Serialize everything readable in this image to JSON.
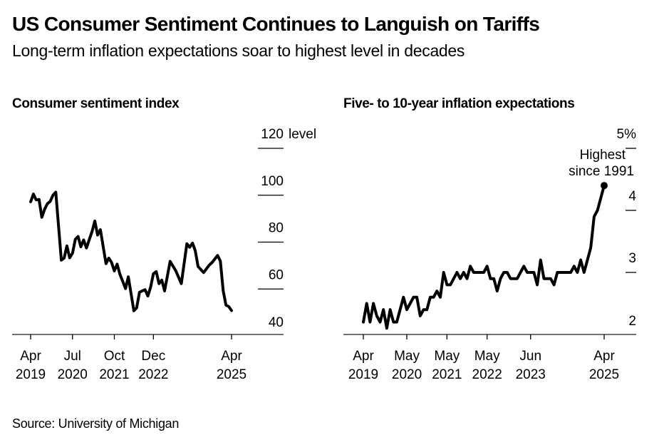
{
  "header": {
    "title": "US Consumer Sentiment Continues to Languish on Tariffs",
    "subtitle": "Long-term inflation expectations soar to highest level in decades"
  },
  "footer": {
    "source": "Source: University of Michigan"
  },
  "colors": {
    "line": "#000000",
    "grid": "#000000",
    "axis": "#555555",
    "text": "#000000"
  },
  "chart_data": [
    {
      "type": "line",
      "title": "Consumer sentiment index",
      "xlabel": "",
      "ylabel": "level",
      "ylim": [
        40,
        120
      ],
      "yticks": [
        {
          "value": 120,
          "label": "120 level"
        },
        {
          "value": 100,
          "label": "100"
        },
        {
          "value": 80,
          "label": "80"
        },
        {
          "value": 60,
          "label": "60"
        },
        {
          "value": 40,
          "label": "40"
        }
      ],
      "xlim": [
        0,
        72
      ],
      "xticks": [
        {
          "x": 0,
          "line1": "Apr",
          "line2": "2019"
        },
        {
          "x": 15,
          "line1": "Jul",
          "line2": "2020"
        },
        {
          "x": 30,
          "line1": "Oct",
          "line2": "2021"
        },
        {
          "x": 44,
          "line1": "Dec",
          "line2": "2022"
        },
        {
          "x": 72,
          "line1": "Apr",
          "line2": "2025"
        }
      ],
      "x_unit": "months since Apr 2019",
      "grid": true,
      "series": [
        {
          "name": "Consumer sentiment index",
          "x": [
            0,
            1,
            2,
            3,
            4,
            5,
            6,
            7,
            8,
            9,
            11,
            12,
            13,
            14,
            15,
            16,
            17,
            18,
            19,
            20,
            22,
            23,
            24,
            25,
            27,
            28,
            29,
            30,
            31,
            32,
            34,
            35,
            37,
            38,
            39,
            40,
            41,
            42,
            43,
            44,
            45,
            46,
            47,
            48,
            50,
            52,
            54,
            56,
            57,
            58,
            59,
            60,
            62,
            64,
            65,
            67,
            68,
            69,
            70,
            71,
            72
          ],
          "values": [
            97.2,
            100.5,
            98,
            98.2,
            90.6,
            94,
            96.4,
            97.3,
            100,
            101.3,
            72.3,
            73.2,
            78.4,
            73.3,
            75.3,
            81.2,
            82.4,
            78,
            80.9,
            77.5,
            84.5,
            89,
            83,
            85.3,
            70.8,
            73.2,
            71.3,
            67.7,
            70.6,
            66.3,
            60.2,
            65.2,
            50.7,
            52,
            58.6,
            59.2,
            59.7,
            57,
            60.8,
            66.5,
            67.4,
            62.3,
            63.8,
            59.2,
            71.8,
            67.8,
            62.3,
            79.3,
            77.8,
            79.6,
            76.3,
            69.6,
            67,
            70.2,
            71.3,
            74.3,
            71.9,
            59.2,
            53.1,
            52.5,
            50.8
          ]
        }
      ]
    },
    {
      "type": "line",
      "title": "Five- to 10-year inflation expectations",
      "xlabel": "",
      "ylabel": "%",
      "ylim": [
        2,
        5
      ],
      "yticks": [
        {
          "value": 5,
          "label": "5%"
        },
        {
          "value": 4,
          "label": "4"
        },
        {
          "value": 3,
          "label": "3"
        },
        {
          "value": 2,
          "label": "2"
        }
      ],
      "xlim": [
        0,
        72
      ],
      "xticks": [
        {
          "x": 0,
          "line1": "Apr",
          "line2": "2019"
        },
        {
          "x": 13,
          "line1": "May",
          "line2": "2020"
        },
        {
          "x": 25,
          "line1": "May",
          "line2": "2021"
        },
        {
          "x": 37,
          "line1": "May",
          "line2": "2022"
        },
        {
          "x": 50,
          "line1": "Jun",
          "line2": "2023"
        },
        {
          "x": 72,
          "line1": "Apr",
          "line2": "2025"
        }
      ],
      "x_unit": "months since Apr 2019",
      "grid": true,
      "annotation": {
        "text_line1": "Highest",
        "text_line2": "since 1991",
        "x": 72,
        "value": 4.4
      },
      "series": [
        {
          "name": "Five- to 10-year inflation expectations",
          "x": [
            0,
            1,
            2,
            3,
            4,
            5,
            6,
            7,
            8,
            9,
            10,
            11,
            12,
            13,
            14,
            15,
            16,
            17,
            18,
            19,
            20,
            21,
            22,
            23,
            24,
            25,
            26,
            27,
            28,
            29,
            30,
            31,
            32,
            33,
            34,
            35,
            36,
            37,
            38,
            39,
            40,
            41,
            42,
            43,
            44,
            45,
            46,
            47,
            48,
            49,
            50,
            51,
            52,
            53,
            54,
            55,
            56,
            57,
            58,
            59,
            60,
            61,
            62,
            63,
            64,
            65,
            66,
            67,
            68,
            69,
            70,
            71,
            72
          ],
          "values": [
            2.2,
            2.5,
            2.2,
            2.5,
            2.3,
            2.2,
            2.4,
            2.1,
            2.4,
            2.2,
            2.2,
            2.4,
            2.6,
            2.4,
            2.5,
            2.6,
            2.6,
            2.3,
            2.4,
            2.4,
            2.6,
            2.6,
            2.7,
            2.6,
            3.0,
            2.8,
            2.8,
            2.9,
            3.0,
            2.9,
            3.0,
            2.9,
            3.1,
            3.0,
            3.0,
            3.0,
            3.0,
            3.1,
            2.9,
            2.9,
            2.7,
            2.9,
            3.0,
            3.0,
            2.9,
            2.9,
            2.9,
            3.0,
            3.1,
            3.0,
            3.0,
            3.0,
            2.8,
            3.2,
            2.9,
            2.9,
            2.9,
            2.8,
            3.0,
            3.0,
            3.0,
            3.0,
            3.0,
            3.1,
            3.0,
            3.2,
            3.0,
            3.2,
            3.4,
            3.9,
            4.0,
            4.2,
            4.4
          ]
        }
      ]
    }
  ]
}
